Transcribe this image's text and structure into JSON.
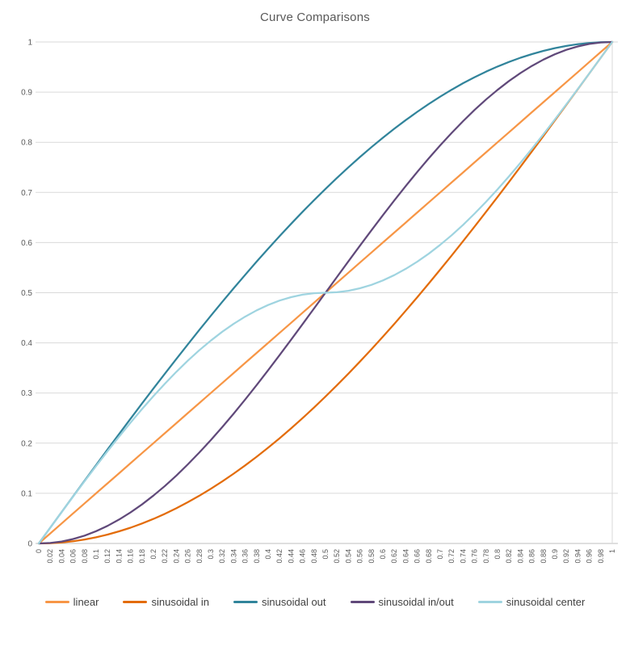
{
  "colors": {
    "background": "#ffffff",
    "title_text": "#595959",
    "axis_text": "#595959",
    "legend_text": "#404040",
    "gridline": "#d9d9d9",
    "axis_line": "#bfbfbf"
  },
  "chart_data": {
    "type": "line",
    "title": "Curve Comparisons",
    "xlabel": "",
    "ylabel": "",
    "xlim": [
      0,
      1
    ],
    "ylim": [
      0,
      1
    ],
    "grid": "horizontal",
    "legend_position": "bottom",
    "x": [
      0,
      0.02,
      0.04,
      0.06,
      0.08,
      0.1,
      0.12,
      0.14,
      0.16,
      0.18,
      0.2,
      0.22,
      0.24,
      0.26,
      0.28,
      0.3,
      0.32,
      0.34,
      0.36,
      0.38,
      0.4,
      0.42,
      0.44,
      0.46,
      0.48,
      0.5,
      0.52,
      0.54,
      0.56,
      0.58,
      0.6,
      0.62,
      0.64,
      0.66,
      0.68,
      0.7,
      0.72,
      0.74,
      0.76,
      0.78,
      0.8,
      0.82,
      0.84,
      0.86,
      0.88,
      0.9,
      0.92,
      0.94,
      0.96,
      0.98,
      1
    ],
    "x_tick_labels": [
      "0",
      "0.02",
      "0.04",
      "0.06",
      "0.08",
      "0.1",
      "0.12",
      "0.14",
      "0.16",
      "0.18",
      "0.2",
      "0.22",
      "0.24",
      "0.26",
      "0.28",
      "0.3",
      "0.32",
      "0.34",
      "0.36",
      "0.38",
      "0.4",
      "0.42",
      "0.44",
      "0.46",
      "0.48",
      "0.5",
      "0.52",
      "0.54",
      "0.56",
      "0.58",
      "0.6",
      "0.62",
      "0.64",
      "0.66",
      "0.68",
      "0.7",
      "0.72",
      "0.74",
      "0.76",
      "0.78",
      "0.8",
      "0.82",
      "0.84",
      "0.86",
      "0.88",
      "0.9",
      "0.92",
      "0.94",
      "0.96",
      "0.98",
      "1"
    ],
    "y_ticks": [
      {
        "label": "0",
        "value": 0
      },
      {
        "label": "0.1",
        "value": 0.1
      },
      {
        "label": "0.2",
        "value": 0.2
      },
      {
        "label": "0.3",
        "value": 0.3
      },
      {
        "label": "0.4",
        "value": 0.4
      },
      {
        "label": "0.5",
        "value": 0.5
      },
      {
        "label": "0.6",
        "value": 0.6
      },
      {
        "label": "0.7",
        "value": 0.7
      },
      {
        "label": "0.8",
        "value": 0.8
      },
      {
        "label": "0.9",
        "value": 0.9
      },
      {
        "label": "1",
        "value": 1
      }
    ],
    "series": [
      {
        "name": "linear",
        "color": "#F79646",
        "values": [
          0,
          0.02,
          0.04,
          0.06,
          0.08,
          0.1,
          0.12,
          0.14,
          0.16,
          0.18,
          0.2,
          0.22,
          0.24,
          0.26,
          0.28,
          0.3,
          0.32,
          0.34,
          0.36,
          0.38,
          0.4,
          0.42,
          0.44,
          0.46,
          0.48,
          0.5,
          0.52,
          0.54,
          0.56,
          0.58,
          0.6,
          0.62,
          0.64,
          0.66,
          0.68,
          0.7,
          0.72,
          0.74,
          0.76,
          0.78,
          0.8,
          0.82,
          0.84,
          0.86,
          0.88,
          0.9,
          0.92,
          0.94,
          0.96,
          0.98,
          1
        ]
      },
      {
        "name": "sinusoidal in",
        "color": "#E36C09",
        "values": [
          0,
          0.0005,
          0.002,
          0.0044,
          0.0079,
          0.0123,
          0.0177,
          0.0241,
          0.0314,
          0.0397,
          0.0489,
          0.0591,
          0.0702,
          0.0823,
          0.0952,
          0.109,
          0.1237,
          0.1393,
          0.1557,
          0.1729,
          0.191,
          0.2098,
          0.2295,
          0.2499,
          0.271,
          0.2929,
          0.3155,
          0.3387,
          0.3626,
          0.3871,
          0.4122,
          0.4379,
          0.4642,
          0.491,
          0.5183,
          0.546,
          0.5742,
          0.6029,
          0.6319,
          0.6613,
          0.691,
          0.721,
          0.7513,
          0.7819,
          0.8126,
          0.8436,
          0.8747,
          0.9059,
          0.9372,
          0.9686,
          1
        ]
      },
      {
        "name": "sinusoidal out",
        "color": "#31849B",
        "values": [
          0,
          0.0314,
          0.0628,
          0.0941,
          0.1253,
          0.1564,
          0.1874,
          0.2181,
          0.2487,
          0.279,
          0.309,
          0.3387,
          0.3681,
          0.3971,
          0.4258,
          0.454,
          0.4818,
          0.509,
          0.5358,
          0.5621,
          0.5878,
          0.6129,
          0.6374,
          0.6613,
          0.6845,
          0.7071,
          0.729,
          0.7501,
          0.7705,
          0.7902,
          0.809,
          0.8271,
          0.8443,
          0.8607,
          0.8763,
          0.891,
          0.9048,
          0.9178,
          0.9298,
          0.9409,
          0.9511,
          0.9603,
          0.9686,
          0.9759,
          0.9823,
          0.9877,
          0.9921,
          0.9956,
          0.998,
          0.9995,
          1
        ]
      },
      {
        "name": "sinusoidal in/out",
        "color": "#60497A",
        "values": [
          0,
          0.001,
          0.0039,
          0.0089,
          0.0157,
          0.0245,
          0.0351,
          0.0476,
          0.0618,
          0.0778,
          0.0955,
          0.1147,
          0.1355,
          0.1578,
          0.1813,
          0.2061,
          0.2321,
          0.2591,
          0.2871,
          0.3159,
          0.3455,
          0.3757,
          0.4063,
          0.4373,
          0.4686,
          0.5,
          0.5314,
          0.5627,
          0.5937,
          0.6243,
          0.6545,
          0.6841,
          0.7129,
          0.7409,
          0.7679,
          0.7939,
          0.8187,
          0.8422,
          0.8645,
          0.8853,
          0.9045,
          0.9222,
          0.9382,
          0.9524,
          0.9649,
          0.9755,
          0.9843,
          0.9911,
          0.9961,
          0.999,
          1
        ]
      },
      {
        "name": "sinusoidal center",
        "color": "#9FD4E0",
        "values": [
          0,
          0.0314,
          0.0627,
          0.0937,
          0.1243,
          0.1545,
          0.1841,
          0.2129,
          0.2409,
          0.2679,
          0.2939,
          0.3187,
          0.3423,
          0.3645,
          0.3853,
          0.4045,
          0.4222,
          0.4382,
          0.4524,
          0.4649,
          0.4755,
          0.4843,
          0.4911,
          0.4961,
          0.499,
          0.5,
          0.501,
          0.5039,
          0.5089,
          0.5157,
          0.5245,
          0.5351,
          0.5476,
          0.5618,
          0.5778,
          0.5955,
          0.6147,
          0.6355,
          0.6578,
          0.6813,
          0.7061,
          0.7321,
          0.7591,
          0.7871,
          0.8159,
          0.8455,
          0.8757,
          0.9063,
          0.9373,
          0.9686,
          1
        ]
      }
    ]
  }
}
